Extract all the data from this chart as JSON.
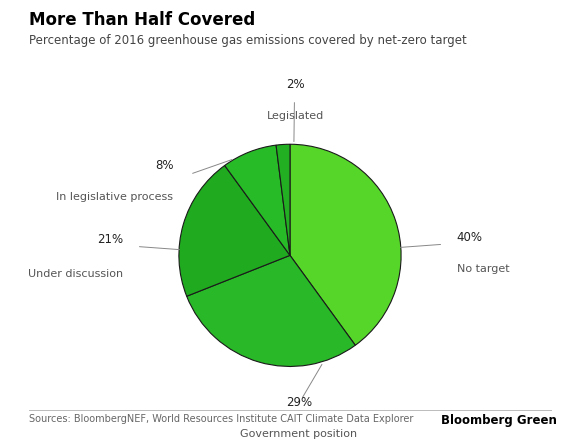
{
  "title": "More Than Half Covered",
  "subtitle": "Percentage of 2016 greenhouse gas emissions covered by net-zero target",
  "slices": [
    40,
    29,
    21,
    8,
    2
  ],
  "labels": [
    "No target",
    "Government position",
    "Under discussion",
    "In legislative process",
    "Legislated"
  ],
  "pct_labels": [
    "40%",
    "29%",
    "21%",
    "8%",
    "2%"
  ],
  "colors": [
    "#55d629",
    "#1faa1f",
    "#28b828",
    "#38c838",
    "#28b828"
  ],
  "background_color": "#ffffff",
  "source_text": "Sources: BloombergNEF, World Resources Institute CAIT Climate Data Explorer",
  "brand_text": "Bloomberg Green",
  "edge_color": "#1a1a1a",
  "line_color": "#888888",
  "title_color": "#000000",
  "subtitle_color": "#444444",
  "source_color": "#666666",
  "brand_color": "#000000"
}
